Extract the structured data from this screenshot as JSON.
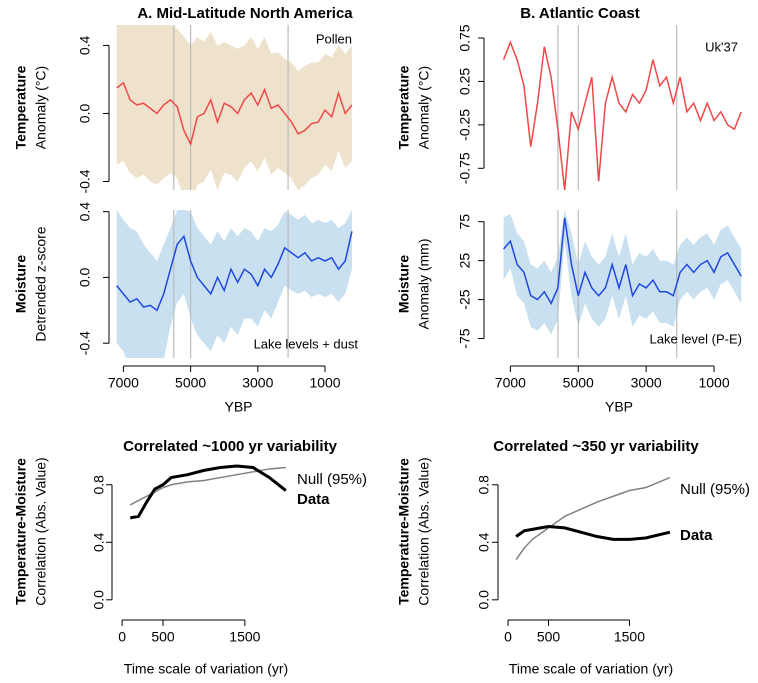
{
  "chart_data": [
    {
      "type": "line",
      "title": "A. Mid-Latitude North America",
      "ylabel_bold": "Temperature",
      "ylabel": "Anomaly (°C)",
      "xlim": [
        7250,
        -100
      ],
      "ylim": [
        -0.45,
        0.52
      ],
      "yticks": [
        -0.4,
        {
          "value": 0,
          "label": "0.0"
        },
        0.4
      ],
      "vlines": [
        5500,
        5000,
        2100
      ],
      "x": [
        7200,
        7000,
        6800,
        6600,
        6400,
        6200,
        6000,
        5800,
        5600,
        5400,
        5200,
        5000,
        4800,
        4600,
        4400,
        4200,
        4000,
        3800,
        3600,
        3400,
        3200,
        3000,
        2800,
        2600,
        2400,
        2200,
        2000,
        1800,
        1600,
        1400,
        1200,
        1000,
        800,
        600,
        400,
        200
      ],
      "series": [
        {
          "name": "Pollen",
          "color": "#f04848",
          "band_color": "#efe2cc",
          "values": [
            0.15,
            0.18,
            0.08,
            0.05,
            0.06,
            0.03,
            0.0,
            0.05,
            0.08,
            0.04,
            -0.1,
            -0.18,
            -0.02,
            0.0,
            0.08,
            -0.05,
            0.06,
            0.04,
            0.0,
            0.08,
            0.12,
            0.05,
            0.14,
            0.03,
            0.05,
            0.0,
            -0.05,
            -0.12,
            -0.1,
            -0.06,
            -0.05,
            0.02,
            -0.02,
            0.12,
            0.0,
            0.05
          ],
          "upper": [
            0.52,
            0.52,
            0.52,
            0.52,
            0.52,
            0.52,
            0.52,
            0.52,
            0.52,
            0.5,
            0.45,
            0.4,
            0.45,
            0.42,
            0.48,
            0.4,
            0.42,
            0.4,
            0.38,
            0.4,
            0.45,
            0.38,
            0.45,
            0.35,
            0.36,
            0.32,
            0.3,
            0.25,
            0.28,
            0.3,
            0.3,
            0.35,
            0.33,
            0.4,
            0.35,
            0.4
          ],
          "lower": [
            -0.3,
            -0.28,
            -0.35,
            -0.38,
            -0.36,
            -0.4,
            -0.42,
            -0.38,
            -0.35,
            -0.38,
            -0.5,
            -0.55,
            -0.42,
            -0.4,
            -0.33,
            -0.45,
            -0.35,
            -0.36,
            -0.4,
            -0.32,
            -0.28,
            -0.34,
            -0.26,
            -0.36,
            -0.32,
            -0.35,
            -0.38,
            -0.45,
            -0.42,
            -0.38,
            -0.36,
            -0.3,
            -0.34,
            -0.22,
            -0.32,
            -0.28
          ]
        }
      ]
    },
    {
      "type": "line",
      "ylabel_bold": "Moisture",
      "ylabel": "Detrended z-score",
      "xlabel": "YBP",
      "xlim": [
        7250,
        -100
      ],
      "ylim": [
        -0.49,
        0.41
      ],
      "yticks": [
        -0.4,
        {
          "value": 0,
          "label": "0.0"
        },
        0.4
      ],
      "xticks": [
        7000,
        5000,
        3000,
        1000
      ],
      "vlines": [
        5500,
        5000,
        2100
      ],
      "x": [
        7200,
        7000,
        6800,
        6600,
        6400,
        6200,
        6000,
        5800,
        5600,
        5400,
        5200,
        5000,
        4800,
        4600,
        4400,
        4200,
        4000,
        3800,
        3600,
        3400,
        3200,
        3000,
        2800,
        2600,
        2400,
        2200,
        2000,
        1800,
        1600,
        1400,
        1200,
        1000,
        800,
        600,
        400,
        200
      ],
      "series": [
        {
          "name": "Lake levels + dust",
          "color": "#2048e0",
          "band_color": "#c8e0f0",
          "values": [
            -0.05,
            -0.1,
            -0.15,
            -0.13,
            -0.18,
            -0.17,
            -0.2,
            -0.1,
            0.05,
            0.2,
            0.25,
            0.1,
            0.0,
            -0.05,
            -0.1,
            0.0,
            -0.08,
            0.05,
            -0.03,
            0.05,
            0.02,
            -0.05,
            0.05,
            0.0,
            0.08,
            0.18,
            0.15,
            0.12,
            0.15,
            0.1,
            0.12,
            0.1,
            0.12,
            0.05,
            0.1,
            0.28
          ],
          "upper": [
            0.41,
            0.35,
            0.3,
            0.28,
            0.2,
            0.15,
            0.1,
            0.2,
            0.3,
            0.41,
            0.41,
            0.4,
            0.3,
            0.25,
            0.2,
            0.28,
            0.22,
            0.3,
            0.25,
            0.3,
            0.28,
            0.22,
            0.3,
            0.28,
            0.32,
            0.4,
            0.38,
            0.35,
            0.38,
            0.33,
            0.35,
            0.33,
            0.35,
            0.3,
            0.33,
            0.41
          ],
          "lower": [
            -0.4,
            -0.45,
            -0.55,
            -0.55,
            -0.6,
            -0.6,
            -0.6,
            -0.5,
            -0.3,
            -0.15,
            -0.1,
            -0.25,
            -0.35,
            -0.4,
            -0.45,
            -0.35,
            -0.4,
            -0.3,
            -0.35,
            -0.25,
            -0.25,
            -0.3,
            -0.2,
            -0.25,
            -0.15,
            -0.05,
            -0.08,
            -0.1,
            -0.08,
            -0.12,
            -0.1,
            -0.12,
            -0.1,
            -0.15,
            -0.1,
            0.05
          ]
        }
      ]
    },
    {
      "type": "line",
      "title": "B. Atlantic Coast",
      "ylabel_bold": "Temperature",
      "ylabel": "Anomaly (°C)",
      "xlim": [
        7600,
        0
      ],
      "ylim": [
        -1.0,
        0.9
      ],
      "yticks": [
        -0.75,
        -0.25,
        0.25,
        0.75
      ],
      "vlines": [
        5600,
        5000,
        2100
      ],
      "x": [
        7200,
        7000,
        6800,
        6600,
        6400,
        6200,
        6000,
        5800,
        5600,
        5400,
        5200,
        5000,
        4800,
        4600,
        4400,
        4200,
        4000,
        3800,
        3600,
        3400,
        3200,
        3000,
        2800,
        2600,
        2400,
        2200,
        2000,
        1800,
        1600,
        1400,
        1200,
        1000,
        800,
        600,
        400,
        200
      ],
      "series": [
        {
          "name": "Uk'37",
          "color": "#f04848",
          "values": [
            0.5,
            0.7,
            0.5,
            0.2,
            -0.5,
            0.0,
            0.65,
            0.3,
            -0.3,
            -1.0,
            -0.1,
            -0.3,
            0.0,
            0.3,
            -0.9,
            0.0,
            0.3,
            0.0,
            -0.1,
            0.1,
            0.0,
            0.15,
            0.5,
            0.2,
            0.3,
            0.0,
            0.3,
            -0.1,
            0.0,
            -0.2,
            0.0,
            -0.2,
            -0.1,
            -0.25,
            -0.3,
            -0.1
          ]
        }
      ]
    },
    {
      "type": "line",
      "ylabel_bold": "Moisture",
      "ylabel": "Anomaly (mm)",
      "xlabel": "YBP",
      "xlim": [
        7600,
        0
      ],
      "ylim": [
        -100,
        90
      ],
      "yticks": [
        -75,
        -25,
        25,
        75
      ],
      "xticks": [
        7000,
        5000,
        3000,
        1000
      ],
      "vlines": [
        5600,
        5000,
        2100
      ],
      "x": [
        7200,
        7000,
        6800,
        6600,
        6400,
        6200,
        6000,
        5800,
        5600,
        5400,
        5200,
        5000,
        4800,
        4600,
        4400,
        4200,
        4000,
        3800,
        3600,
        3400,
        3200,
        3000,
        2800,
        2600,
        2400,
        2200,
        2000,
        1800,
        1600,
        1400,
        1200,
        1000,
        800,
        600,
        400,
        200
      ],
      "series": [
        {
          "name": "Lake level (P-E)",
          "color": "#2048e0",
          "band_color": "#c8e0f0",
          "values": [
            40,
            50,
            20,
            10,
            -20,
            -25,
            -15,
            -30,
            -10,
            80,
            20,
            -20,
            10,
            -10,
            -20,
            -10,
            20,
            -10,
            20,
            -20,
            -5,
            -10,
            0,
            -15,
            -15,
            -20,
            10,
            20,
            10,
            20,
            25,
            10,
            30,
            35,
            20,
            5
          ],
          "upper": [
            80,
            85,
            60,
            50,
            20,
            15,
            25,
            10,
            30,
            90,
            60,
            20,
            50,
            30,
            20,
            30,
            60,
            30,
            60,
            20,
            35,
            30,
            40,
            25,
            25,
            20,
            45,
            55,
            45,
            55,
            60,
            45,
            65,
            70,
            55,
            40
          ],
          "lower": [
            0,
            15,
            -20,
            -30,
            -60,
            -65,
            -55,
            -70,
            -50,
            50,
            -20,
            -60,
            -30,
            -50,
            -60,
            -50,
            -20,
            -50,
            -20,
            -60,
            -45,
            -50,
            -40,
            -55,
            -55,
            -60,
            -25,
            -15,
            -25,
            -15,
            -10,
            -25,
            -5,
            0,
            -15,
            -30
          ]
        }
      ]
    },
    {
      "type": "line",
      "title": "Correlated ~1000 yr variability",
      "ylabel_bold": "Temperature-Moisture",
      "ylabel": "Correlation (Abs. Value)",
      "xlabel": "Time scale of variation (yr)",
      "xlim": [
        -50,
        2100
      ],
      "ylim": [
        -0.05,
        1.0
      ],
      "yticks": [
        {
          "value": 0,
          "label": "0.0"
        },
        0.4,
        0.8
      ],
      "xticks": [
        0,
        500,
        1500
      ],
      "x": [
        100,
        200,
        300,
        400,
        500,
        600,
        800,
        1000,
        1200,
        1400,
        1600,
        1800,
        2000
      ],
      "series": [
        {
          "name": "Null (95%)",
          "color": "#808080",
          "values": [
            0.66,
            0.69,
            0.72,
            0.75,
            0.78,
            0.8,
            0.82,
            0.83,
            0.85,
            0.87,
            0.89,
            0.91,
            0.92
          ]
        },
        {
          "name": "Data",
          "color": "#000000",
          "values": [
            0.57,
            0.58,
            0.68,
            0.77,
            0.8,
            0.85,
            0.87,
            0.9,
            0.92,
            0.93,
            0.92,
            0.85,
            0.76
          ]
        }
      ]
    },
    {
      "type": "line",
      "title": "Correlated ~350 yr variability",
      "ylabel_bold": "Temperature-Moisture",
      "ylabel": "Correlation (Abs. Value)",
      "xlabel": "Time scale of variation (yr)",
      "xlim": [
        -50,
        2100
      ],
      "ylim": [
        -0.05,
        1.0
      ],
      "yticks": [
        {
          "value": 0,
          "label": "0.0"
        },
        0.4,
        0.8
      ],
      "xticks": [
        0,
        500,
        1500
      ],
      "x": [
        100,
        200,
        300,
        400,
        500,
        700,
        900,
        1100,
        1300,
        1500,
        1700,
        2000
      ],
      "series": [
        {
          "name": "Null (95%)",
          "color": "#808080",
          "values": [
            0.28,
            0.36,
            0.42,
            0.46,
            0.5,
            0.58,
            0.63,
            0.68,
            0.72,
            0.76,
            0.78,
            0.85
          ]
        },
        {
          "name": "Data",
          "color": "#000000",
          "values": [
            0.44,
            0.48,
            0.49,
            0.5,
            0.51,
            0.5,
            0.47,
            0.44,
            0.42,
            0.42,
            0.43,
            0.47
          ]
        }
      ]
    }
  ]
}
